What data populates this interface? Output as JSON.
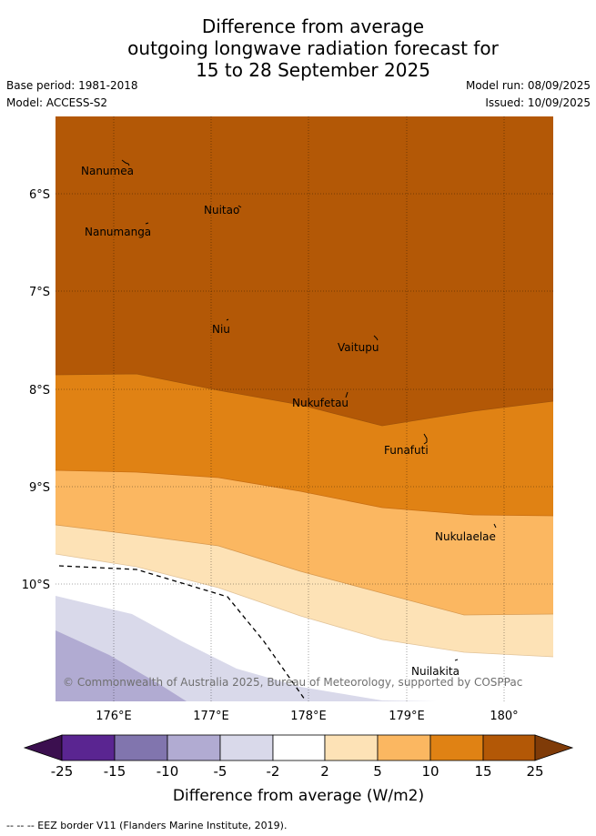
{
  "title": {
    "line1": "Difference from average",
    "line2": "outgoing longwave radiation forecast for",
    "line3": "15 to 28 September 2025"
  },
  "meta": {
    "base_period": "Base period: 1981-2018",
    "model": "Model: ACCESS-S2",
    "model_run": "Model run: 08/09/2025",
    "issued": "Issued: 10/09/2025"
  },
  "map": {
    "lat_labels": [
      "6°S",
      "7°S",
      "8°S",
      "9°S",
      "10°S"
    ],
    "lon_labels": [
      "176°E",
      "177°E",
      "178°E",
      "179°E",
      "180°"
    ],
    "places": [
      "Nanumea",
      "Nuitao",
      "Nanumanga",
      "Niu",
      "Vaitupu",
      "Nukufetau",
      "Funafuti",
      "Nukulaelae",
      "Nuilakita"
    ],
    "copyright": "© Commonwealth of Australia 2025, Bureau of Meteorology, supported by COSPPac"
  },
  "colorbar": {
    "ticks": [
      "-25",
      "-15",
      "-10",
      "-5",
      "-2",
      "2",
      "5",
      "10",
      "15",
      "25"
    ],
    "colors": {
      "lt_-25": "#3b0f4f",
      "-25_-15": "#5a2591",
      "-15_-10": "#8175ae",
      "-10_-5": "#b1abd2",
      "-5_-2": "#d9d9ea",
      "-2_2": "#ffffff",
      "2_5": "#fde2b6",
      "5_10": "#fbb761",
      "10_15": "#e08214",
      "15_25": "#b35806",
      "gt_25": "#7f3b08"
    },
    "label": "Difference from average (W/m2)"
  },
  "footer": {
    "eez_legend": "--  --  -- EEZ border V11 (Flanders Marine Institute, 2019)."
  }
}
